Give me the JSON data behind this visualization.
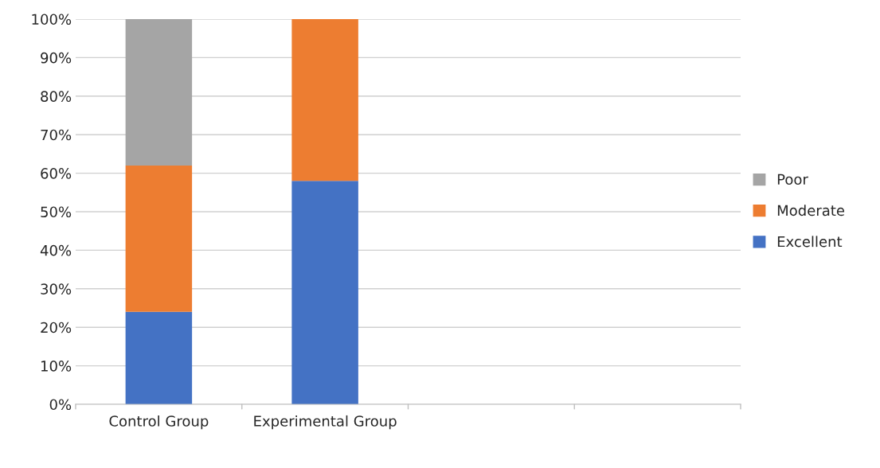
{
  "chart_data": {
    "type": "bar",
    "stacked": true,
    "categories": [
      "Control Group",
      "Experimental Group",
      null,
      null
    ],
    "series": [
      {
        "name": "Excellent",
        "color": "#4472c4",
        "values": [
          24,
          58,
          null,
          null
        ]
      },
      {
        "name": "Moderate",
        "color": "#ed7d31",
        "values": [
          38,
          42,
          null,
          null
        ]
      },
      {
        "name": "Poor",
        "color": "#a5a5a5",
        "values": [
          38,
          null,
          null,
          null
        ]
      }
    ],
    "ylim": [
      0,
      100
    ],
    "yticks": [
      {
        "value": 0,
        "label": "0%"
      },
      {
        "value": 10,
        "label": "10%"
      },
      {
        "value": 20,
        "label": "20%"
      },
      {
        "value": 30,
        "label": "30%"
      },
      {
        "value": 40,
        "label": "40%"
      },
      {
        "value": 50,
        "label": "50%"
      },
      {
        "value": 60,
        "label": "60%"
      },
      {
        "value": 70,
        "label": "70%"
      },
      {
        "value": 80,
        "label": "80%"
      },
      {
        "value": 90,
        "label": "90%"
      },
      {
        "value": 100,
        "label": "100%"
      }
    ],
    "grid": "y",
    "legend": "right"
  }
}
